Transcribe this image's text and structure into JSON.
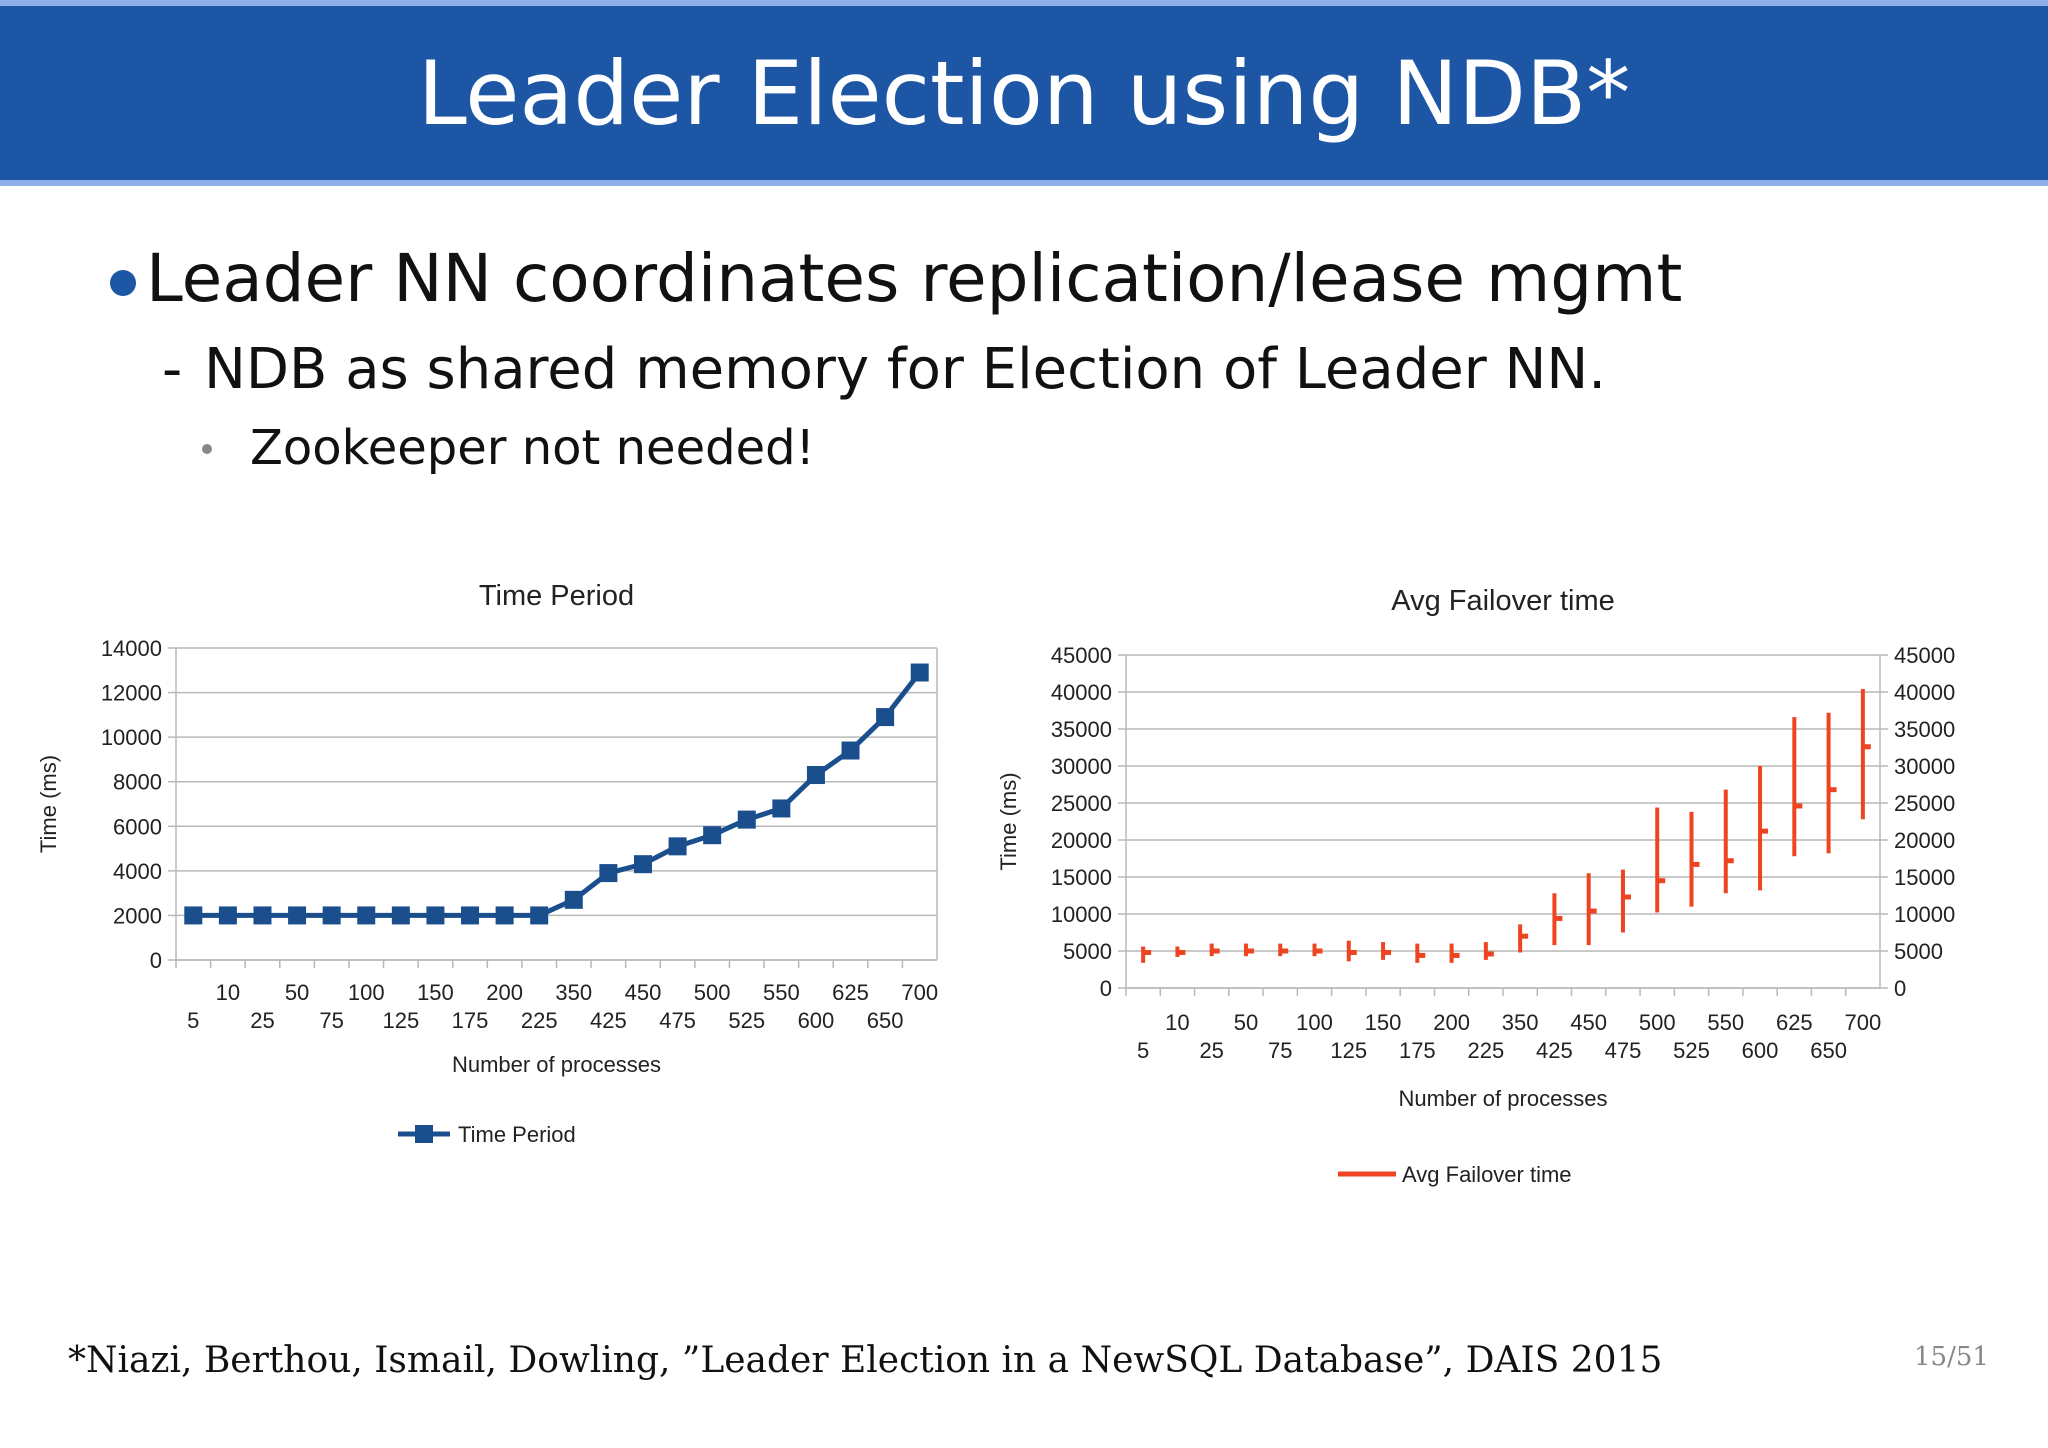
{
  "slide": {
    "title": "Leader Election using NDB*",
    "bullet_1": "Leader NN coordinates replication/lease mgmt",
    "bullet_2_dash": "-",
    "bullet_2": "NDB as shared memory for Election of Leader NN.",
    "bullet_3": "Zookeeper not needed!",
    "footnote": "*Niazi, Berthou, Ismail, Dowling, ”Leader Election in a NewSQL Database”, DAIS 2015",
    "page_number": "15/51"
  },
  "colors": {
    "header": "#1e56a6",
    "series_time_period": "#1a4e8c",
    "series_failover": "#ee4422"
  },
  "chart_data": [
    {
      "type": "line",
      "title": "Time Period",
      "xlabel": "Number of processes",
      "ylabel": "Time (ms)",
      "ylim": [
        0,
        14000
      ],
      "yticks": [
        0,
        2000,
        4000,
        6000,
        8000,
        10000,
        12000,
        14000
      ],
      "grid": true,
      "legend_position": "bottom",
      "categories": [
        "5",
        "10",
        "25",
        "50",
        "75",
        "100",
        "125",
        "150",
        "175",
        "200",
        "225",
        "350",
        "425",
        "450",
        "475",
        "500",
        "525",
        "550",
        "600",
        "625",
        "650",
        "700"
      ],
      "series": [
        {
          "name": "Time Period",
          "marker": "square",
          "values": [
            2000,
            2000,
            2000,
            2000,
            2000,
            2000,
            2000,
            2000,
            2000,
            2000,
            2000,
            2700,
            3900,
            4300,
            5100,
            5600,
            6300,
            6800,
            8300,
            9400,
            10900,
            12900
          ]
        }
      ]
    },
    {
      "type": "errorbar",
      "title": "Avg Failover time",
      "xlabel": "Number of processes",
      "ylabel": "Time (ms)",
      "ylim": [
        0,
        45000
      ],
      "yticks": [
        0,
        5000,
        10000,
        15000,
        20000,
        25000,
        30000,
        35000,
        40000,
        45000
      ],
      "secondary_yaxis": true,
      "grid": true,
      "legend_position": "bottom",
      "categories": [
        "5",
        "10",
        "25",
        "50",
        "75",
        "100",
        "125",
        "150",
        "175",
        "200",
        "225",
        "350",
        "425",
        "450",
        "475",
        "500",
        "525",
        "550",
        "600",
        "625",
        "650",
        "700"
      ],
      "series": [
        {
          "name": "Avg Failover time",
          "avg": [
            4800,
            4800,
            5000,
            5000,
            5000,
            5000,
            4800,
            4800,
            4400,
            4400,
            4600,
            7000,
            9400,
            10400,
            12300,
            14500,
            16700,
            17200,
            21200,
            24600,
            26800,
            32600
          ],
          "min": [
            3400,
            4200,
            4300,
            4300,
            4300,
            4300,
            3600,
            3800,
            3400,
            3400,
            3800,
            4800,
            5800,
            5800,
            7500,
            10200,
            11000,
            12800,
            13200,
            17800,
            18200,
            22800
          ],
          "max": [
            5600,
            5600,
            6000,
            6000,
            6000,
            6000,
            6400,
            6200,
            6000,
            6000,
            6200,
            8600,
            12800,
            15500,
            16000,
            24400,
            23800,
            26800,
            30000,
            36600,
            37200,
            40400
          ]
        }
      ]
    }
  ]
}
